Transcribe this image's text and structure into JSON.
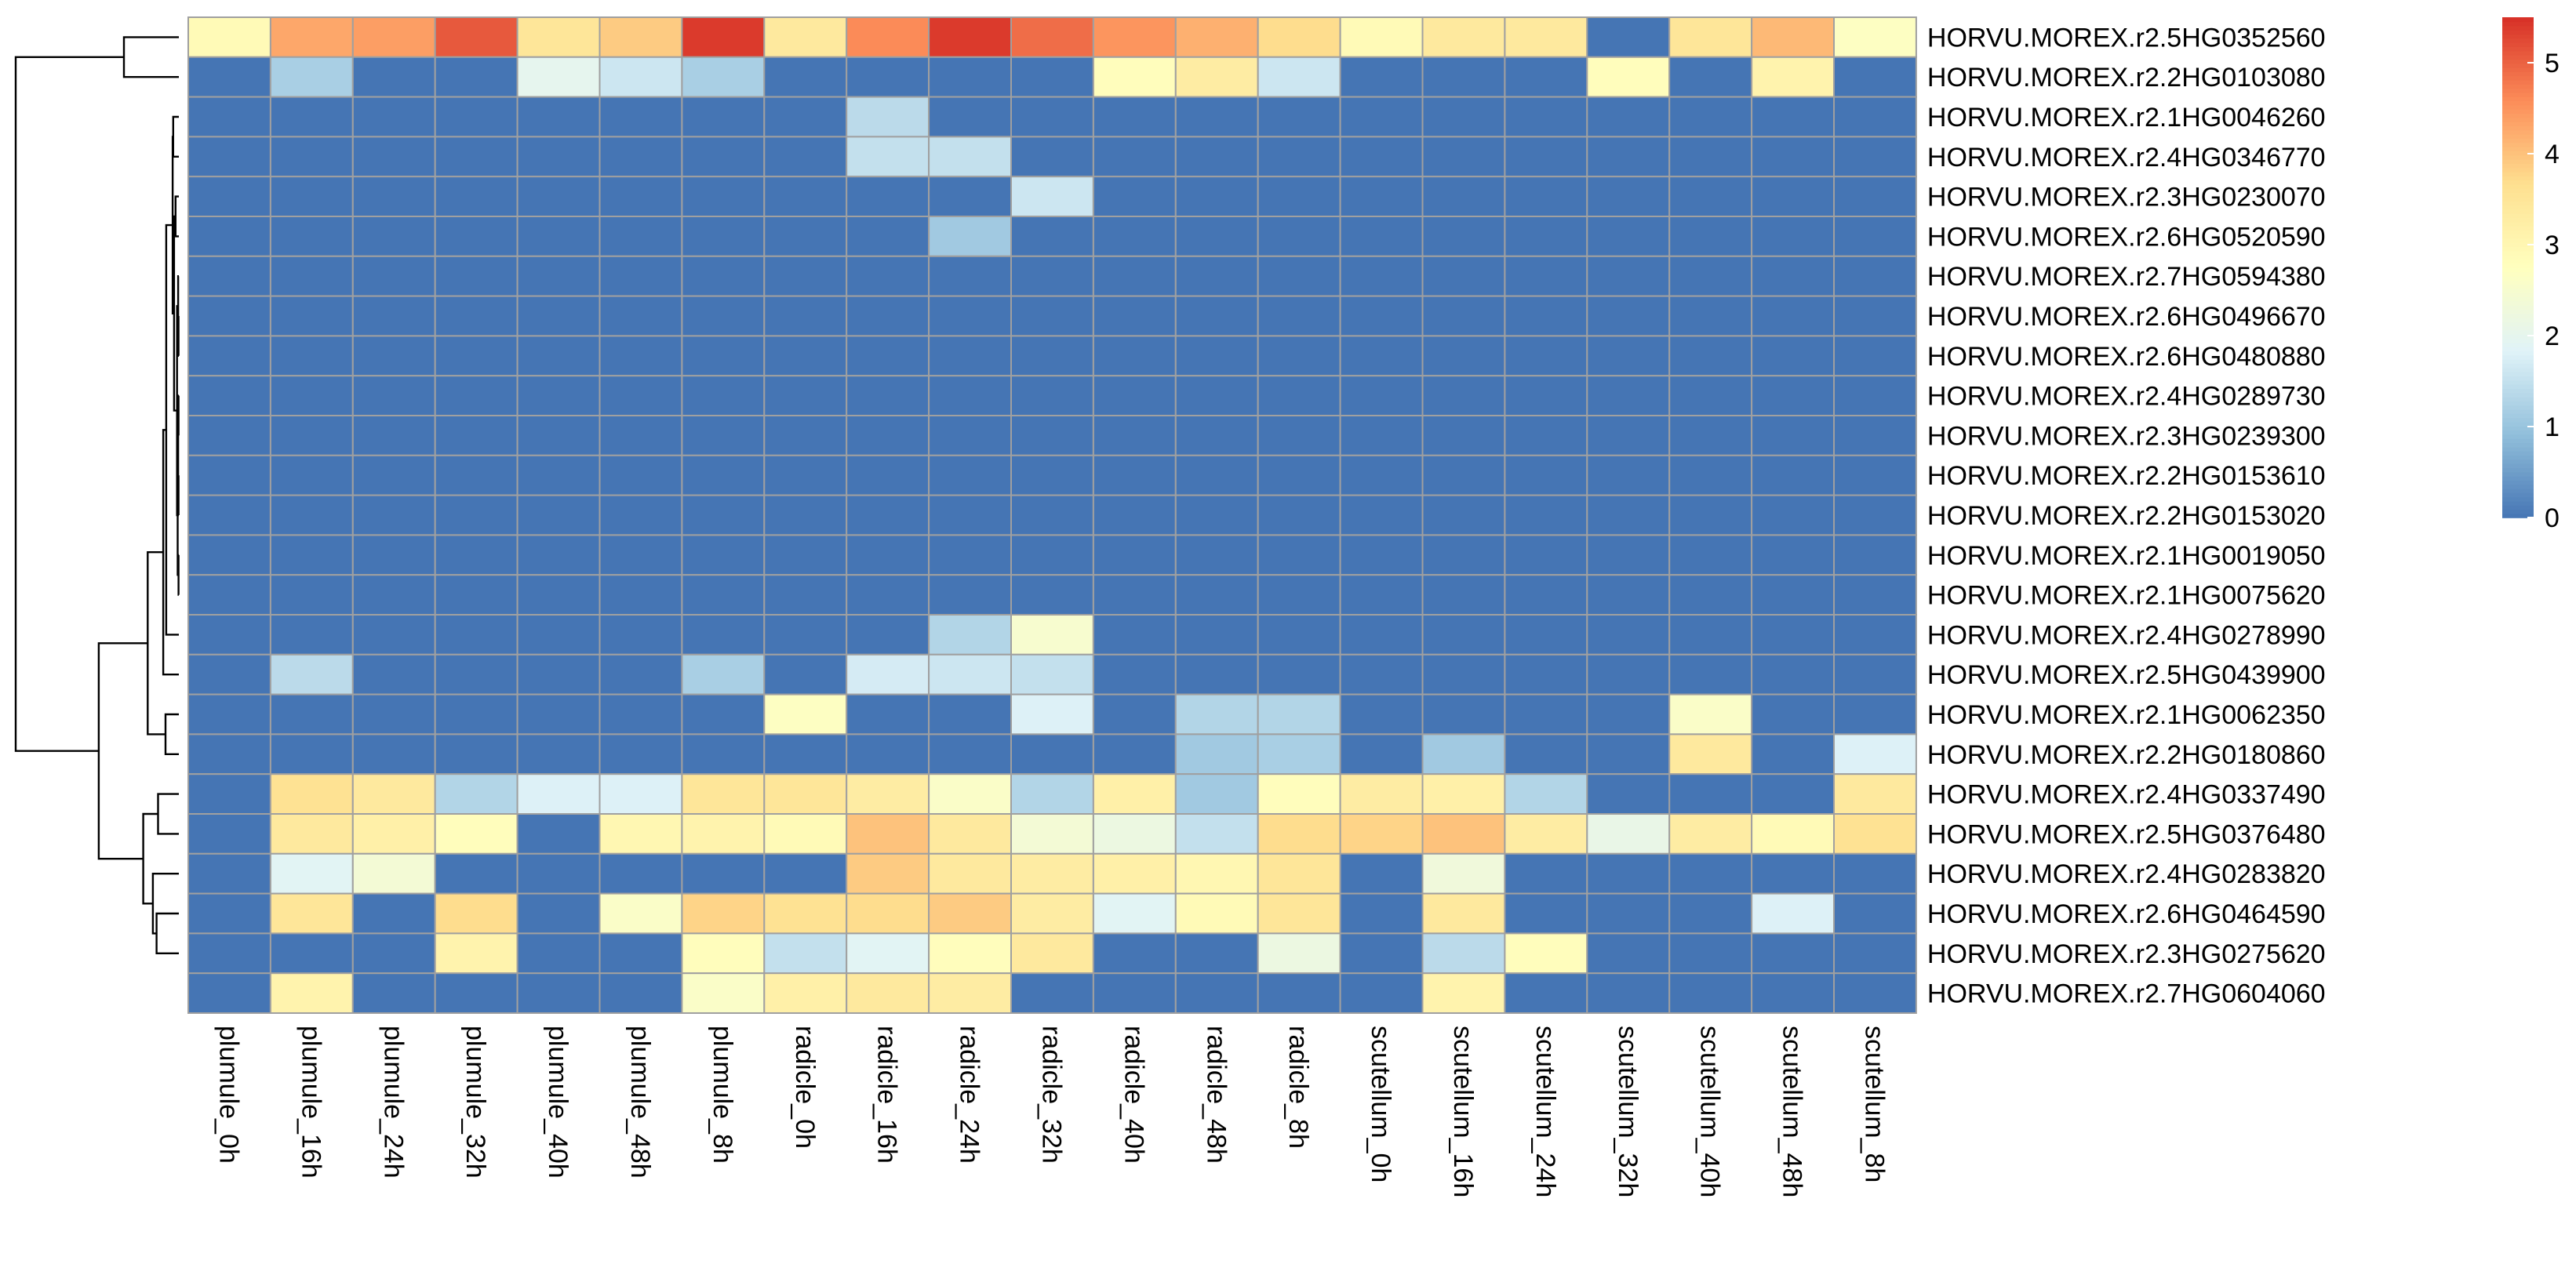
{
  "chart_data": {
    "type": "heatmap",
    "title": "",
    "xlabel": "",
    "ylabel": "",
    "columns": [
      "plumule_0h",
      "plumule_16h",
      "plumule_24h",
      "plumule_32h",
      "plumule_40h",
      "plumule_48h",
      "plumule_8h",
      "radicle_0h",
      "radicle_16h",
      "radicle_24h",
      "radicle_32h",
      "radicle_40h",
      "radicle_48h",
      "radicle_8h",
      "scutellum_0h",
      "scutellum_16h",
      "scutellum_24h",
      "scutellum_32h",
      "scutellum_40h",
      "scutellum_48h",
      "scutellum_8h"
    ],
    "rows": [
      "HORVU.MOREX.r2.5HG0352560",
      "HORVU.MOREX.r2.2HG0103080",
      "HORVU.MOREX.r2.1HG0046260",
      "HORVU.MOREX.r2.4HG0346770",
      "HORVU.MOREX.r2.3HG0230070",
      "HORVU.MOREX.r2.6HG0520590",
      "HORVU.MOREX.r2.7HG0594380",
      "HORVU.MOREX.r2.6HG0496670",
      "HORVU.MOREX.r2.6HG0480880",
      "HORVU.MOREX.r2.4HG0289730",
      "HORVU.MOREX.r2.3HG0239300",
      "HORVU.MOREX.r2.2HG0153610",
      "HORVU.MOREX.r2.2HG0153020",
      "HORVU.MOREX.r2.1HG0019050",
      "HORVU.MOREX.r2.1HG0075620",
      "HORVU.MOREX.r2.4HG0278990",
      "HORVU.MOREX.r2.5HG0439900",
      "HORVU.MOREX.r2.1HG0062350",
      "HORVU.MOREX.r2.2HG0180860",
      "HORVU.MOREX.r2.4HG0337490",
      "HORVU.MOREX.r2.5HG0376480",
      "HORVU.MOREX.r2.4HG0283820",
      "HORVU.MOREX.r2.6HG0464590",
      "HORVU.MOREX.r2.3HG0275620",
      "HORVU.MOREX.r2.7HG0604060"
    ],
    "values": [
      [
        2.9,
        4.3,
        4.4,
        5.1,
        3.5,
        3.9,
        5.4,
        3.4,
        4.6,
        5.4,
        4.9,
        4.5,
        4.2,
        3.7,
        2.9,
        3.4,
        3.4,
        0,
        3.5,
        4.1,
        2.7
      ],
      [
        0,
        1.2,
        0,
        0,
        2.0,
        1.6,
        1.2,
        0,
        0,
        0,
        0,
        2.8,
        3.3,
        1.6,
        0,
        0,
        0,
        2.8,
        0,
        3.1,
        0
      ],
      [
        0,
        0,
        0,
        0,
        0,
        0,
        0,
        0,
        1.4,
        0,
        0,
        0,
        0,
        0,
        0,
        0,
        0,
        0,
        0,
        0,
        0
      ],
      [
        0,
        0,
        0,
        0,
        0,
        0,
        0,
        0,
        1.5,
        1.5,
        0,
        0,
        0,
        0,
        0,
        0,
        0,
        0,
        0,
        0,
        0
      ],
      [
        0,
        0,
        0,
        0,
        0,
        0,
        0,
        0,
        0,
        0,
        1.6,
        0,
        0,
        0,
        0,
        0,
        0,
        0,
        0,
        0,
        0
      ],
      [
        0,
        0,
        0,
        0,
        0,
        0,
        0,
        0,
        0,
        1.1,
        0,
        0,
        0,
        0,
        0,
        0,
        0,
        0,
        0,
        0,
        0
      ],
      [
        0,
        0,
        0,
        0,
        0,
        0,
        0,
        0,
        0,
        0,
        0,
        0,
        0,
        0,
        0,
        0,
        0,
        0,
        0,
        0,
        0
      ],
      [
        0,
        0,
        0,
        0,
        0,
        0,
        0,
        0,
        0,
        0,
        0,
        0,
        0,
        0,
        0,
        0,
        0,
        0,
        0,
        0,
        0
      ],
      [
        0,
        0,
        0,
        0,
        0,
        0,
        0,
        0,
        0,
        0,
        0,
        0,
        0,
        0,
        0,
        0,
        0,
        0,
        0,
        0,
        0
      ],
      [
        0,
        0,
        0,
        0,
        0,
        0,
        0,
        0,
        0,
        0,
        0,
        0,
        0,
        0,
        0,
        0,
        0,
        0,
        0,
        0,
        0
      ],
      [
        0,
        0,
        0,
        0,
        0,
        0,
        0,
        0,
        0,
        0,
        0,
        0,
        0,
        0,
        0,
        0,
        0,
        0,
        0,
        0,
        0
      ],
      [
        0,
        0,
        0,
        0,
        0,
        0,
        0,
        0,
        0,
        0,
        0,
        0,
        0,
        0,
        0,
        0,
        0,
        0,
        0,
        0,
        0
      ],
      [
        0,
        0,
        0,
        0,
        0,
        0,
        0,
        0,
        0,
        0,
        0,
        0,
        0,
        0,
        0,
        0,
        0,
        0,
        0,
        0,
        0
      ],
      [
        0,
        0,
        0,
        0,
        0,
        0,
        0,
        0,
        0,
        0,
        0,
        0,
        0,
        0,
        0,
        0,
        0,
        0,
        0,
        0,
        0
      ],
      [
        0,
        0,
        0,
        0,
        0,
        0,
        0,
        0,
        0,
        0,
        0,
        0,
        0,
        0,
        0,
        0,
        0,
        0,
        0,
        0,
        0
      ],
      [
        0,
        0,
        0,
        0,
        0,
        0,
        0,
        0,
        0,
        1.3,
        2.5,
        0,
        0,
        0,
        0,
        0,
        0,
        0,
        0,
        0,
        0
      ],
      [
        0,
        1.4,
        0,
        0,
        0,
        0,
        1.2,
        0,
        1.7,
        1.6,
        1.5,
        0,
        0,
        0,
        0,
        0,
        0,
        0,
        0,
        0,
        0
      ],
      [
        0,
        0,
        0,
        0,
        0,
        0,
        0,
        2.7,
        0,
        0,
        1.8,
        0,
        1.3,
        1.3,
        0,
        0,
        0,
        0,
        2.6,
        0,
        0
      ],
      [
        0,
        0,
        0,
        0,
        0,
        0,
        0,
        0,
        0,
        0,
        0,
        0,
        1.1,
        1.2,
        0,
        1.1,
        0,
        0,
        3.4,
        0,
        1.8
      ],
      [
        0,
        3.6,
        3.4,
        1.3,
        1.8,
        1.8,
        3.5,
        3.5,
        3.3,
        2.6,
        1.3,
        3.2,
        1.1,
        2.8,
        3.3,
        3.2,
        1.3,
        0,
        0,
        0,
        3.4
      ],
      [
        0,
        3.4,
        3.2,
        2.8,
        0,
        3.0,
        3.1,
        2.9,
        4.0,
        3.4,
        2.4,
        2.2,
        1.5,
        3.7,
        3.8,
        4.0,
        3.3,
        2.1,
        3.3,
        2.9,
        3.6
      ],
      [
        0,
        1.9,
        2.4,
        0,
        0,
        0,
        0,
        0,
        3.9,
        3.4,
        3.3,
        3.2,
        3.0,
        3.5,
        0,
        2.3,
        0,
        0,
        0,
        0,
        0
      ],
      [
        0,
        3.5,
        0,
        3.7,
        0,
        2.6,
        3.8,
        3.6,
        3.7,
        3.9,
        3.3,
        1.9,
        2.9,
        3.5,
        0,
        3.4,
        0,
        0,
        0,
        1.8,
        0
      ],
      [
        0,
        0,
        0,
        3.1,
        0,
        0,
        2.8,
        1.5,
        1.9,
        2.8,
        3.4,
        0,
        0,
        2.2,
        0,
        1.4,
        2.8,
        0,
        0,
        0,
        0
      ],
      [
        0,
        3.1,
        0,
        0,
        0,
        0,
        2.6,
        3.2,
        3.4,
        3.3,
        0,
        0,
        0,
        0,
        0,
        3.1,
        0,
        0,
        0,
        0,
        0
      ]
    ],
    "color_scale": {
      "min": 0,
      "max": 5.5,
      "stops": [
        "#4575B4",
        "#91BFDB",
        "#E0F3F8",
        "#FFFFBF",
        "#FEE090",
        "#FC8D59",
        "#D73027"
      ],
      "ticks": [
        0,
        1,
        2,
        3,
        4,
        5
      ],
      "tick_labels": [
        "0",
        "1",
        "2",
        "3",
        "4",
        "5"
      ],
      "cell_border_color": "#A0A0A0"
    },
    "legend": {
      "position": "right",
      "type": "colorbar"
    },
    "dendrogram": {
      "position": "left",
      "merges": [
        {
          "a": 7,
          "b": 8,
          "h": 0.02
        },
        {
          "a": 6,
          "b": 7,
          "h": 0.05
        },
        {
          "a": 9,
          "b": 10,
          "h": 0.02
        },
        {
          "a": 11,
          "b": 12,
          "h": 0.02
        },
        {
          "a": 13,
          "b": 14,
          "h": 0.02
        },
        {
          "a": 9,
          "b": 11,
          "h": 0.05
        },
        {
          "a": 9,
          "b": 13,
          "h": 0.08
        },
        {
          "a": 6,
          "b": 9,
          "h": 0.12
        },
        {
          "a": 4,
          "b": 5,
          "h": 0.22
        },
        {
          "a": 4,
          "b": 6,
          "h": 0.32
        },
        {
          "a": 2,
          "b": 3,
          "h": 0.38
        },
        {
          "a": 2,
          "b": 4,
          "h": 0.42
        },
        {
          "a": 2,
          "b": 15,
          "h": 0.85
        },
        {
          "a": 2,
          "b": 16,
          "h": 1.05
        },
        {
          "a": 17,
          "b": 18,
          "h": 0.9
        },
        {
          "a": 2,
          "b": 17,
          "h": 2.1
        },
        {
          "a": 19,
          "b": 20,
          "h": 1.4
        },
        {
          "a": 22,
          "b": 23,
          "h": 1.5
        },
        {
          "a": 21,
          "b": 22,
          "h": 1.75
        },
        {
          "a": 19,
          "b": 21,
          "h": 2.4
        },
        {
          "a": 2,
          "b": 19,
          "h": 5.4
        },
        {
          "a": 0,
          "b": 1,
          "h": 3.7
        },
        {
          "a": 0,
          "b": 2,
          "h": 11.0
        }
      ]
    }
  }
}
